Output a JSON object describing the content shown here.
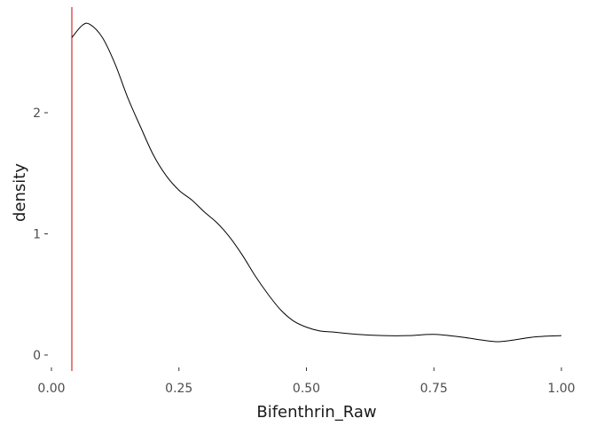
{
  "chart_data": {
    "type": "line",
    "title": "",
    "xlabel": "Bifenthrin_Raw",
    "ylabel": "density",
    "xlim": [
      0,
      1
    ],
    "ylim": [
      0,
      2.75
    ],
    "x_ticks": [
      "0.00",
      "0.25",
      "0.50",
      "0.75",
      "1.00"
    ],
    "x_tick_values": [
      0,
      0.25,
      0.5,
      0.75,
      1.0
    ],
    "y_ticks": [
      "0",
      "1",
      "2"
    ],
    "y_tick_values": [
      0,
      1,
      2
    ],
    "grid": false,
    "vline": {
      "x": 0.04,
      "color": "#cc0000"
    },
    "series": [
      {
        "color": "#000000",
        "x": [
          0.04,
          0.06,
          0.075,
          0.1,
          0.125,
          0.15,
          0.175,
          0.2,
          0.225,
          0.25,
          0.275,
          0.3,
          0.325,
          0.35,
          0.375,
          0.4,
          0.425,
          0.45,
          0.475,
          0.5,
          0.525,
          0.55,
          0.6,
          0.65,
          0.7,
          0.75,
          0.8,
          0.85,
          0.875,
          0.9,
          0.95,
          1.0
        ],
        "y": [
          2.62,
          2.72,
          2.73,
          2.62,
          2.4,
          2.12,
          1.88,
          1.65,
          1.48,
          1.36,
          1.28,
          1.18,
          1.09,
          0.97,
          0.82,
          0.65,
          0.5,
          0.37,
          0.28,
          0.23,
          0.2,
          0.19,
          0.17,
          0.16,
          0.16,
          0.17,
          0.15,
          0.12,
          0.11,
          0.12,
          0.15,
          0.16
        ]
      }
    ]
  }
}
